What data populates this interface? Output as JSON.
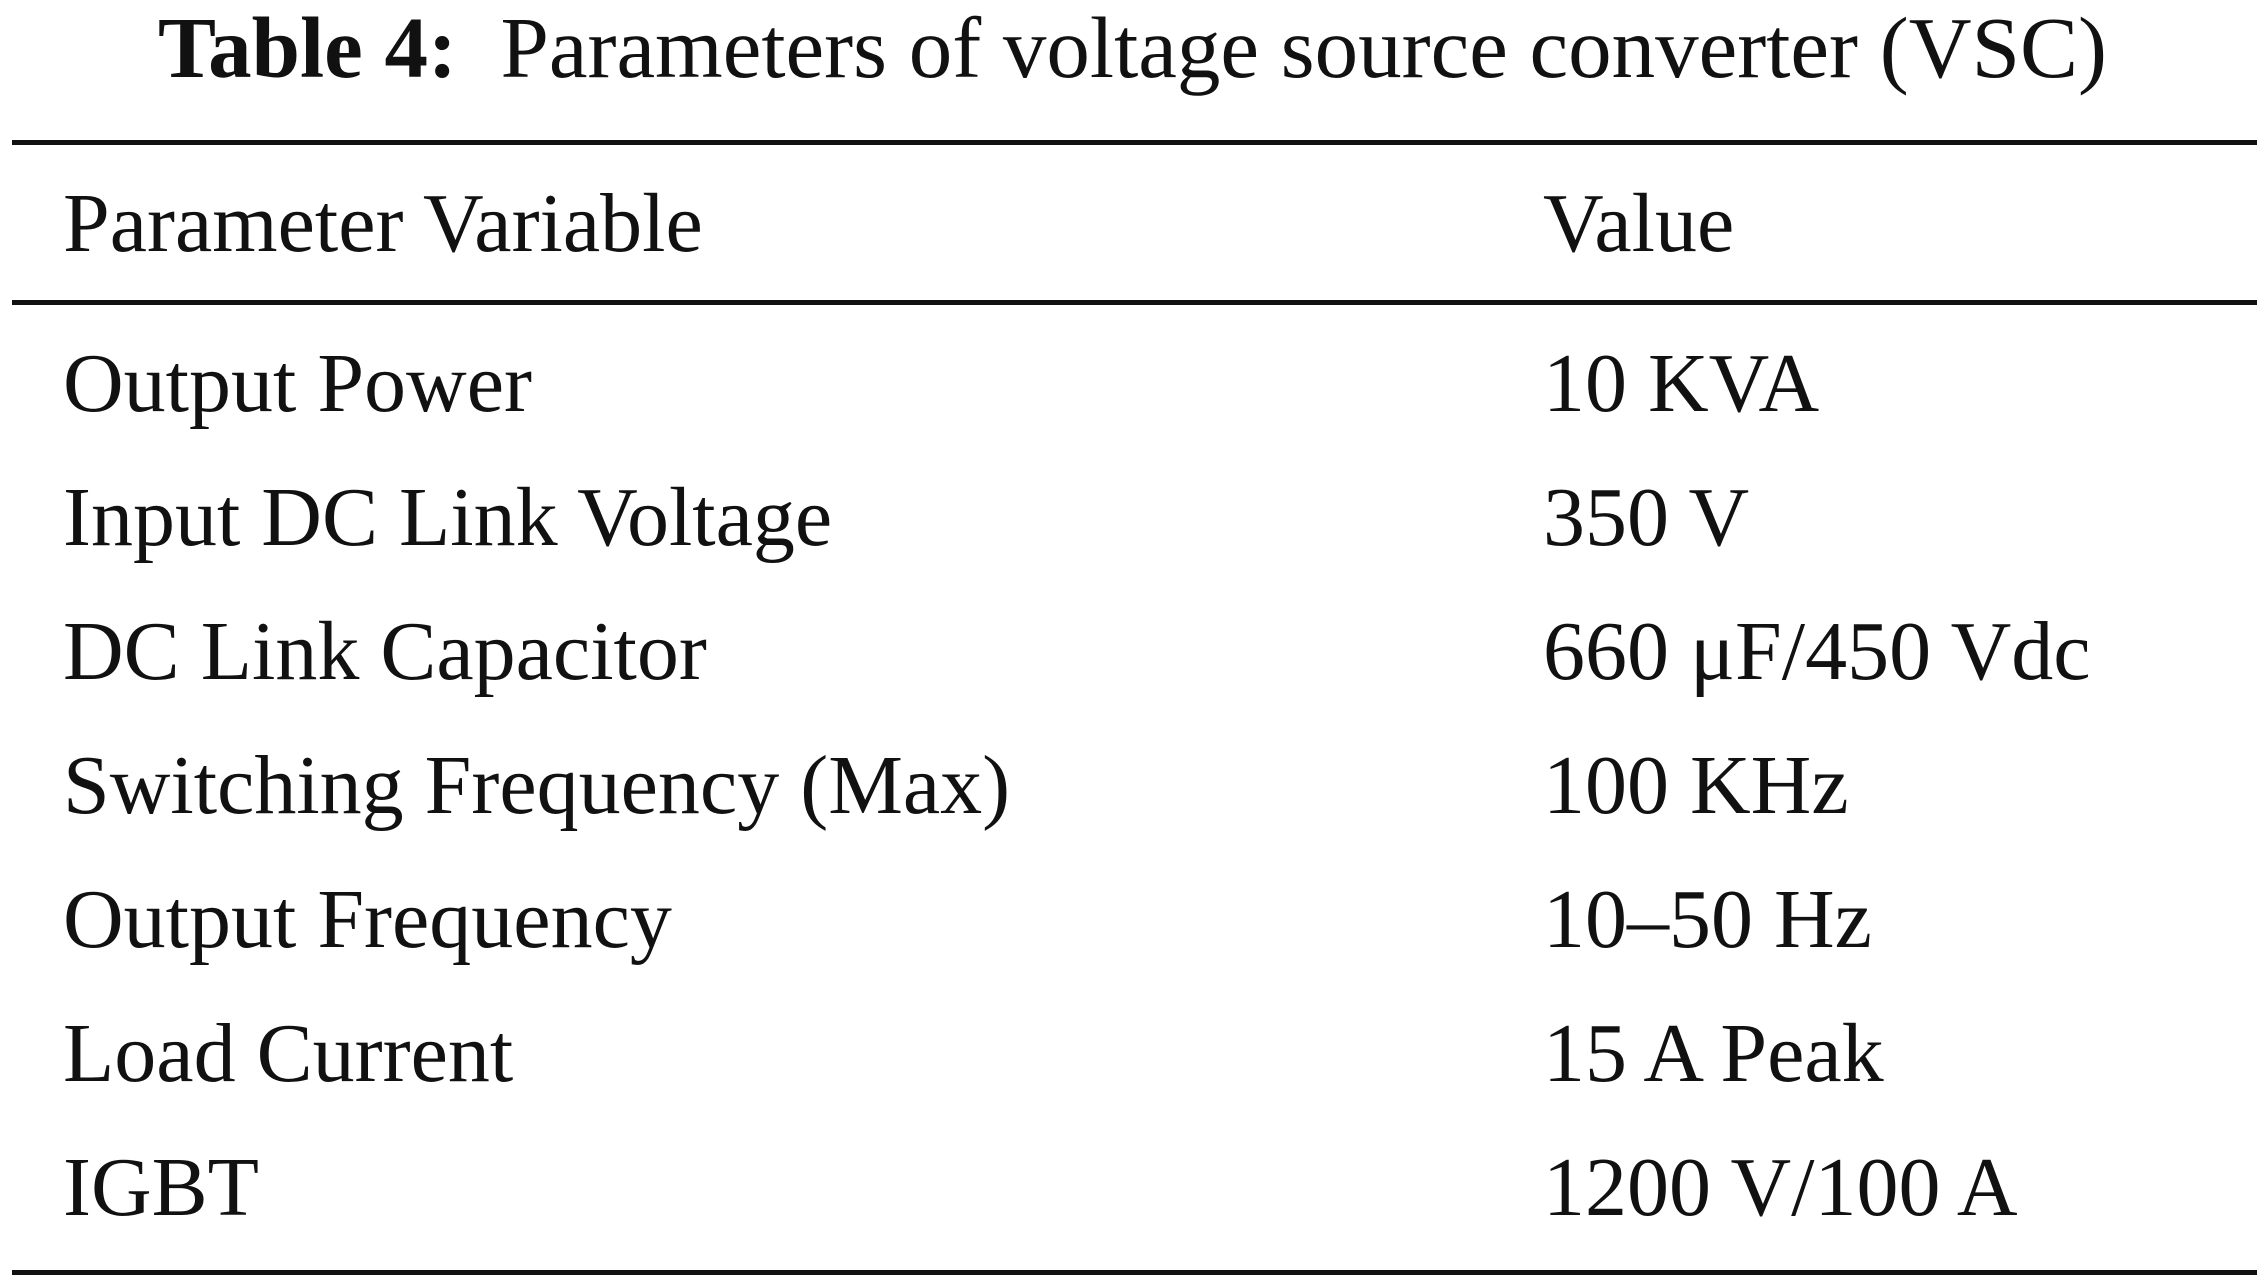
{
  "caption": {
    "label": "Table 4:",
    "text": "Parameters of voltage source converter (VSC)"
  },
  "table": {
    "headers": {
      "parameter": "Parameter Variable",
      "value": "Value"
    },
    "rows": [
      {
        "parameter": "Output Power",
        "value": "10 KVA"
      },
      {
        "parameter": "Input DC Link Voltage",
        "value": "350 V"
      },
      {
        "parameter": "DC Link Capacitor",
        "value": "660 μF/450 Vdc"
      },
      {
        "parameter": "Switching Frequency (Max)",
        "value": "100 KHz"
      },
      {
        "parameter": "Output Frequency",
        "value": "10–50 Hz"
      },
      {
        "parameter": "Load Current",
        "value": "15 A Peak"
      },
      {
        "parameter": "IGBT",
        "value": "1200 V/100 A"
      }
    ]
  }
}
